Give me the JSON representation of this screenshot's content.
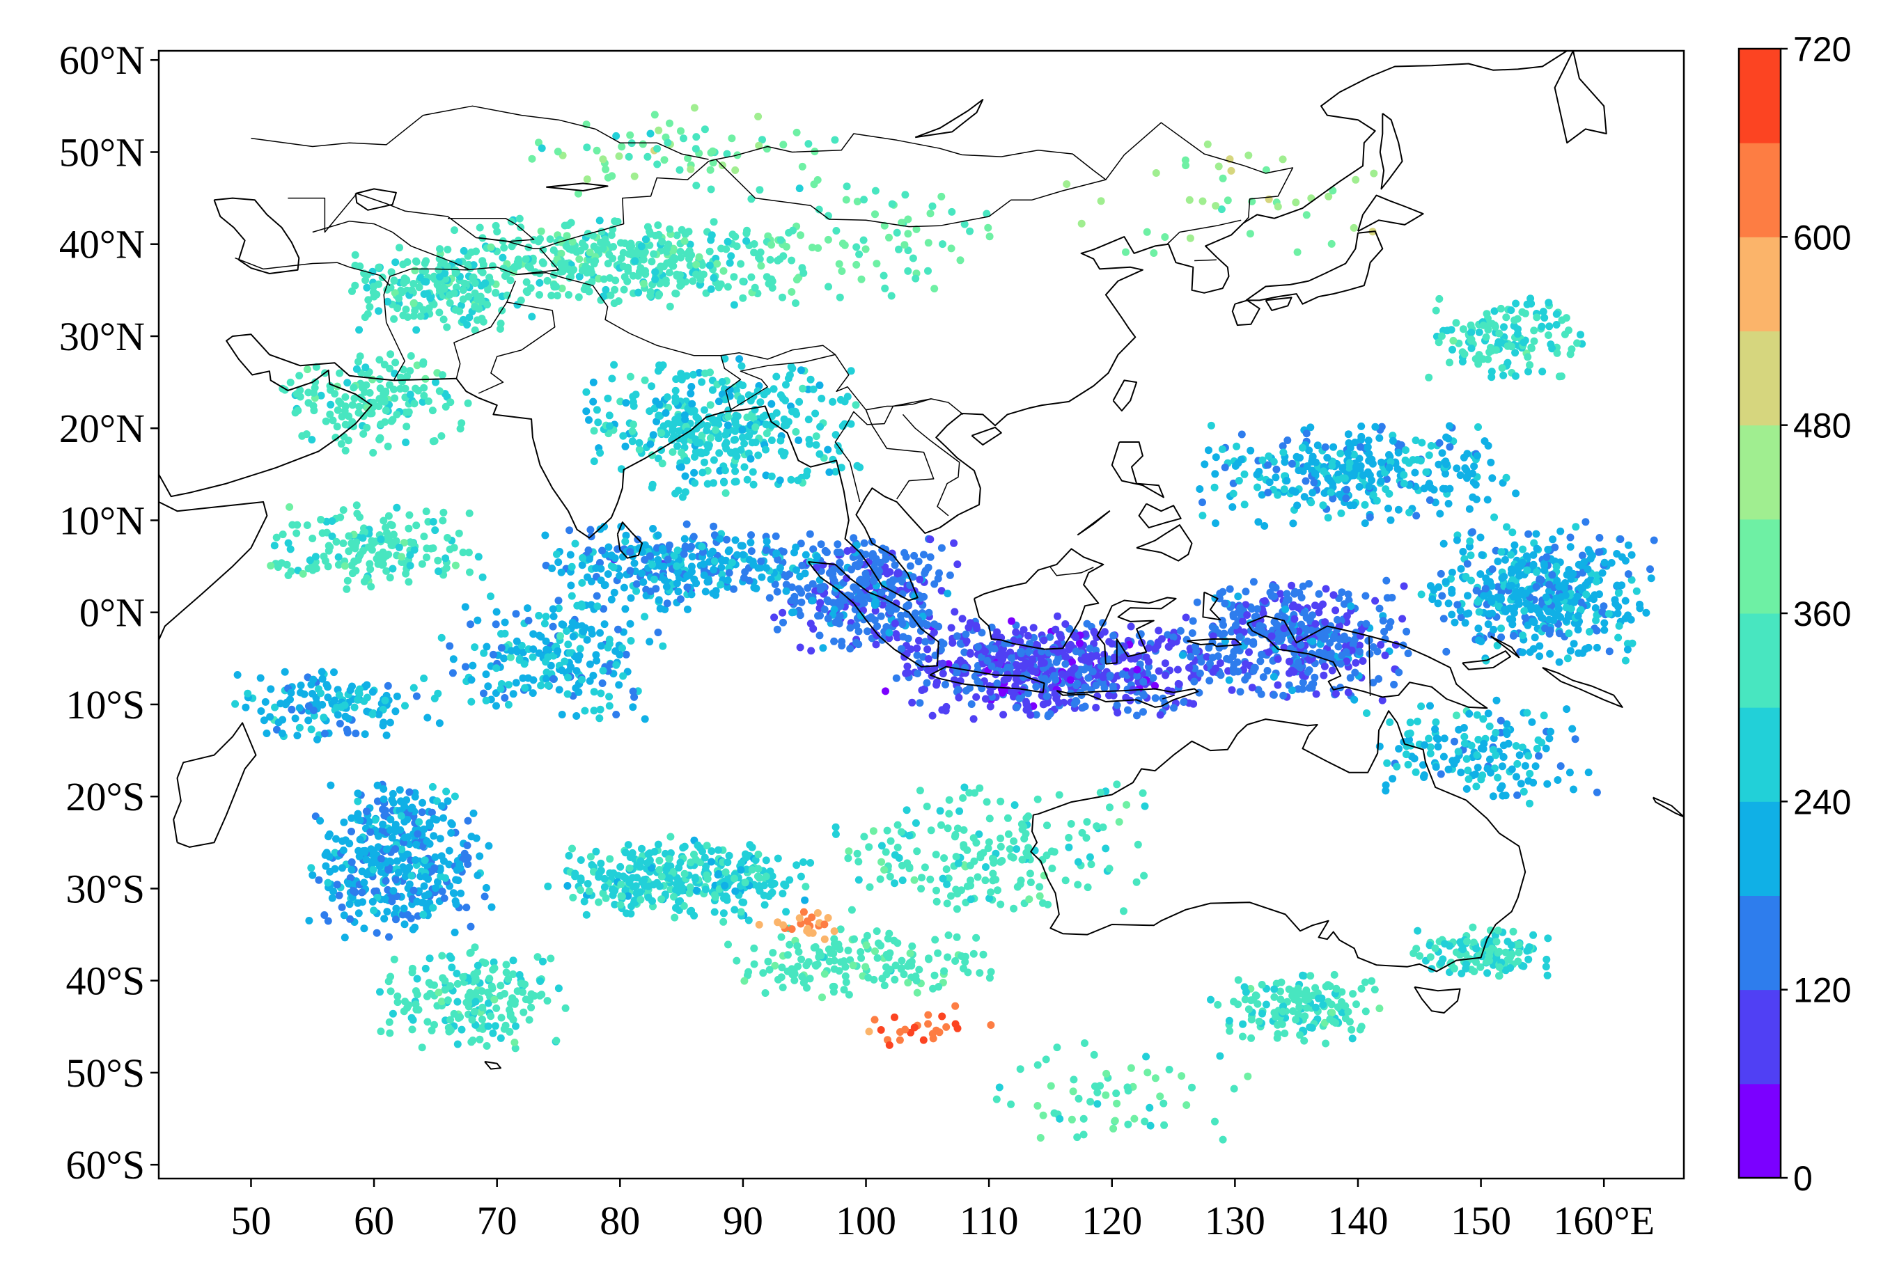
{
  "map": {
    "lon_ticks": [
      50,
      60,
      70,
      80,
      90,
      100,
      110,
      120,
      130,
      140,
      150,
      160
    ],
    "lon_tick_labels": [
      "50",
      "60",
      "70",
      "80",
      "90",
      "100",
      "110",
      "120",
      "130",
      "140",
      "150",
      "160°E"
    ],
    "lat_ticks": [
      60,
      50,
      40,
      30,
      20,
      10,
      0,
      -10,
      -20,
      -30,
      -40,
      -50,
      -60
    ],
    "lat_tick_labels": [
      "60°N",
      "50°N",
      "40°N",
      "30°N",
      "20°N",
      "10°N",
      "0°N",
      "10°S",
      "20°S",
      "30°S",
      "40°S",
      "50°S",
      "60°S"
    ],
    "lon_range": [
      42.5,
      166.5
    ],
    "lat_range": [
      -61.5,
      61
    ]
  },
  "colorbar": {
    "min": 0,
    "max": 720,
    "step": 60,
    "tick_values": [
      0,
      120,
      240,
      360,
      480,
      600,
      720
    ],
    "tick_labels": [
      "0",
      "120",
      "240",
      "360",
      "480",
      "600",
      "720"
    ],
    "colors": [
      "#7b00ff",
      "#5040f4",
      "#2e7ded",
      "#10b0e6",
      "#22d0d8",
      "#48e6c0",
      "#6ef0a4",
      "#a0ee90",
      "#d6d67e",
      "#fbb46a",
      "#fd7d43",
      "#fc4422"
    ]
  },
  "legend_icons": [
    "coastline-icon"
  ]
}
